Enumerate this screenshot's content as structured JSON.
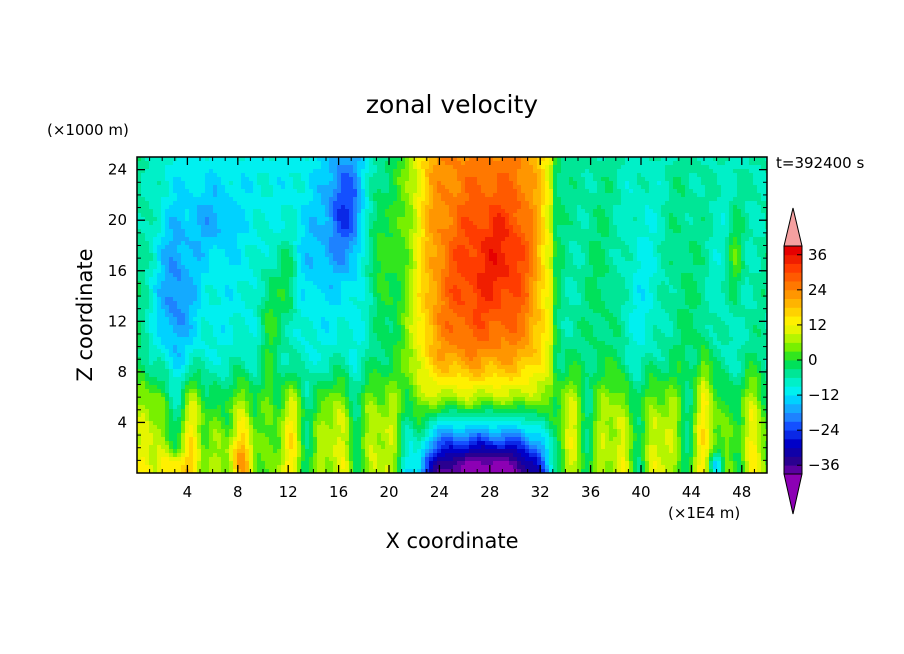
{
  "chart_data": {
    "type": "heatmap",
    "title": "zonal velocity",
    "xlabel": "X coordinate",
    "ylabel": "Z coordinate",
    "x_unit_label": "(×1E4 m)",
    "y_unit_label": "(×1000 m)",
    "time_label": "t=392400 s",
    "xlim": [
      0,
      50
    ],
    "ylim": [
      0,
      25
    ],
    "x_ticks": [
      "4",
      "8",
      "12",
      "16",
      "20",
      "24",
      "28",
      "32",
      "36",
      "40",
      "44",
      "48"
    ],
    "x_tick_values": [
      4,
      8,
      12,
      16,
      20,
      24,
      28,
      32,
      36,
      40,
      44,
      48
    ],
    "y_ticks": [
      "4",
      "8",
      "12",
      "16",
      "20",
      "24"
    ],
    "y_tick_values": [
      4,
      8,
      12,
      16,
      20,
      24
    ],
    "colorbar": {
      "levels": [
        -42,
        -39,
        -36,
        -33,
        -30,
        -27,
        -24,
        -21,
        -18,
        -15,
        -12,
        -9,
        -6,
        -3,
        0,
        3,
        6,
        9,
        12,
        15,
        18,
        21,
        24,
        27,
        30,
        33,
        36,
        39,
        42
      ],
      "tick_labels": [
        "36",
        "24",
        "12",
        "0",
        "−12",
        "−24",
        "−36"
      ],
      "tick_values": [
        36,
        24,
        12,
        0,
        -12,
        -24,
        -36
      ],
      "colors": [
        "#8c00b4",
        "#5a00a0",
        "#2a0090",
        "#1000a8",
        "#0000c8",
        "#0a28e6",
        "#1450ff",
        "#1e82ff",
        "#14aaff",
        "#00d2ff",
        "#00f0f0",
        "#00f0c8",
        "#00e696",
        "#00e15a",
        "#32e61e",
        "#78f000",
        "#b4f500",
        "#e6f500",
        "#fff000",
        "#ffd200",
        "#ffb400",
        "#ff9600",
        "#ff7800",
        "#ff5a00",
        "#ff3c00",
        "#f01e00",
        "#e60000",
        "#f5a0a0"
      ]
    },
    "features": [
      {
        "x": 29,
        "z": 17,
        "value": 30
      },
      {
        "x": 27,
        "z": 10,
        "value": 22
      },
      {
        "x": 28,
        "z": 1,
        "value": -38
      },
      {
        "x": 25,
        "z": 2,
        "value": -30
      },
      {
        "x": 16.5,
        "z": 22,
        "value": -24
      },
      {
        "x": 3,
        "z": 14,
        "value": -18
      },
      {
        "x": 6,
        "z": 20,
        "value": -12
      },
      {
        "x": 3,
        "z": 0.5,
        "value": 24
      },
      {
        "x": 46,
        "z": 1,
        "value": -20
      },
      {
        "x": 10,
        "z": 4,
        "value": 10
      }
    ]
  }
}
